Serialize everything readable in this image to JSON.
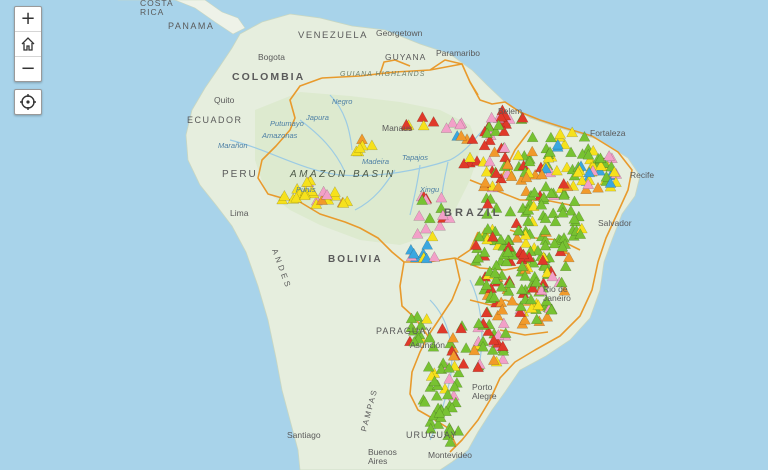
{
  "controls": {
    "zoom_in": "+",
    "zoom_out": "−"
  },
  "colors": {
    "ocean": "#a8d3ea",
    "land": "#e6eede",
    "land_alt": "#eef2e8",
    "forest": "#d9e8c9",
    "river": "#9ccbe4",
    "boundary": "#e89a2c",
    "marker_green": "#77c232",
    "marker_yellow": "#f6e11c",
    "marker_orange": "#f19a2b",
    "marker_red": "#e0392a",
    "marker_pink": "#f2a0c8",
    "marker_blue": "#3aa7e0"
  },
  "labels": {
    "costa_rica": "COSTA\nRICA",
    "panama": "PANAMA",
    "venezuela": "VENEZUELA",
    "georgetown": "Georgetown",
    "guyana": "GUYANA",
    "paramaribo": "Paramaribo",
    "guiana_highlands": "GUIANA HIGHLANDS",
    "bogota": "Bogota",
    "colombia": "COLOMBIA",
    "quito": "Quito",
    "ecuador": "ECUADOR",
    "negro": "Negro",
    "japura": "Japura",
    "putumayo": "Putumayo",
    "amazonas": "Amazonas",
    "maranon": "Marañon",
    "manaus": "Manaus",
    "belem": "Belem",
    "fortaleza": "Fortaleza",
    "recife": "Recife",
    "salvador": "Salvador",
    "amazon_basin": "AMAZON BASIN",
    "peru": "PERU",
    "lima": "Lima",
    "brazil": "BRAZIL",
    "bolivia": "BOLIVIA",
    "madeira": "Madeira",
    "tapajos": "Tapajos",
    "xingu": "Xingu",
    "purus": "Purus",
    "andes": "ANDES",
    "paraguay": "PARAGUAY",
    "asuncion": "Asunción",
    "rio_de_janeiro": "Rio de\nJaneiro",
    "porto_alegre": "Porto\nAlegre",
    "pampas": "PAMPAS",
    "uruguay": "URUGUAY",
    "santiago": "Santiago",
    "buenos_aires": "Buenos\nAires",
    "montevideo": "Montevideo"
  },
  "markers": {
    "categories": [
      "green",
      "yellow",
      "orange",
      "red",
      "pink",
      "blue"
    ]
  }
}
